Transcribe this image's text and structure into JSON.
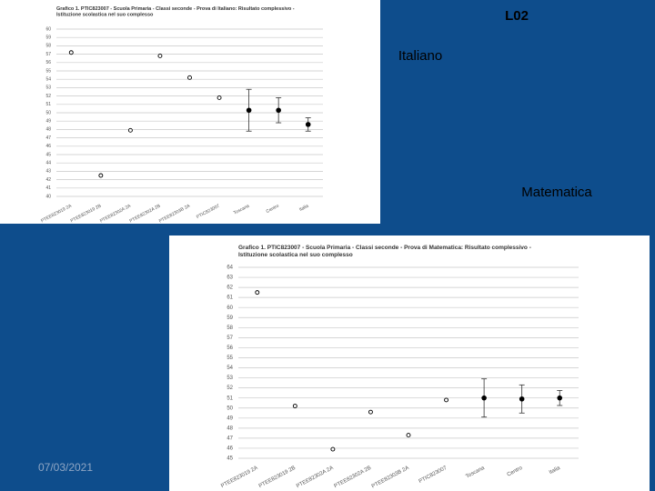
{
  "slide": {
    "code": "L02",
    "label_italian": "Italiano",
    "label_math": "Matematica",
    "date": "07/03/2021"
  },
  "chart_data": [
    {
      "type": "scatter",
      "title": "Grafico 1. PTIC823007 - Scuola Primaria - Classi seconde - Prova di Italiano: Risultato complessivo - Istituzione scolastica nel suo complesso",
      "categories": [
        "PTEE823019 2A",
        "PTEE823019 2B",
        "PTEE82302A 2A",
        "PTEE82302A 2B",
        "PTEE82303B 2A",
        "PTIC823007",
        "Toscana",
        "Centro",
        "Italia"
      ],
      "values": [
        57.2,
        42.5,
        47.9,
        56.8,
        54.2,
        51.8,
        50.3,
        50.3,
        48.6
      ],
      "errors": [
        null,
        null,
        null,
        null,
        null,
        null,
        2.5,
        1.5,
        0.8
      ],
      "color": "#000000",
      "ylim": [
        40,
        60
      ],
      "yticks": [
        40,
        41,
        42,
        43,
        44,
        45,
        46,
        47,
        48,
        49,
        50,
        51,
        52,
        53,
        54,
        55,
        56,
        57,
        58,
        59,
        60
      ],
      "grid": true
    },
    {
      "type": "scatter",
      "title": "Grafico 1. PTIC823007 - Scuola Primaria - Classi seconde - Prova di Matematica: Risultato complessivo - Istituzione scolastica nel suo complesso",
      "categories": [
        "PTEE823019 2A",
        "PTEE823019 2B",
        "PTEE82302A 2A",
        "PTEE82302A 2B",
        "PTEE82303B 2A",
        "PTIC823007",
        "Toscana",
        "Centro",
        "Italia"
      ],
      "values": [
        61.5,
        50.2,
        45.9,
        49.6,
        47.3,
        50.8,
        51.0,
        50.9,
        51.0
      ],
      "errors": [
        null,
        null,
        null,
        null,
        null,
        null,
        1.9,
        1.4,
        0.75
      ],
      "color": "#000000",
      "ylim": [
        45,
        64
      ],
      "yticks": [
        45,
        46,
        47,
        48,
        49,
        50,
        51,
        52,
        53,
        54,
        55,
        56,
        57,
        58,
        59,
        60,
        61,
        62,
        63,
        64
      ],
      "grid": true
    }
  ]
}
